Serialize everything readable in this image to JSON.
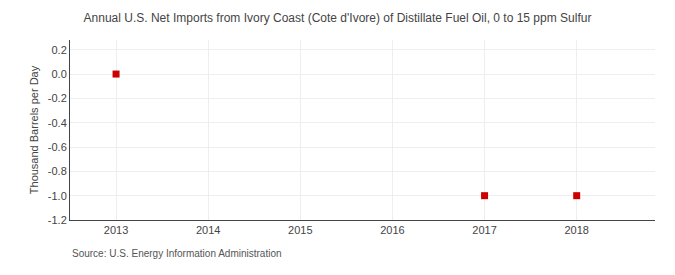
{
  "chart_data": {
    "type": "scatter",
    "title": "Annual U.S. Net Imports from Ivory Coast (Cote d'Ivore) of Distillate Fuel Oil, 0 to 15 ppm Sulfur",
    "y_label": "Thousand Barrels per Day",
    "source": "Source: U.S. Energy Information Administration",
    "x": [
      2013,
      2017,
      2018
    ],
    "values": [
      0,
      -1,
      -1
    ],
    "color": "#cc0000",
    "marker": "square",
    "xlim": [
      2012.5,
      2018.85
    ],
    "ylim": [
      -1.2,
      0.28
    ],
    "xticks": [
      2013,
      2014,
      2015,
      2016,
      2017,
      2018
    ],
    "yticks": [
      0.2,
      {
        "value": 0,
        "label": "0.0"
      },
      -0.2,
      -0.4,
      -0.6,
      -0.8,
      {
        "value": -1,
        "label": "-1.0"
      },
      -1.2
    ],
    "grid": true
  }
}
